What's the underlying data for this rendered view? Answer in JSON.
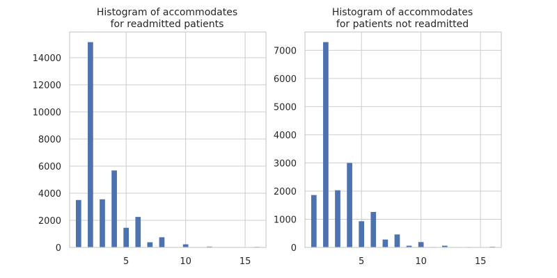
{
  "colors": {
    "bar": "#4c72b0",
    "grid": "#cccccc",
    "frame": "#cccccc",
    "text": "#262626",
    "background": "#ffffff"
  },
  "chart_data": [
    {
      "type": "bar",
      "title": [
        "Histogram of accommodates",
        "for readmitted patients"
      ],
      "xlabel": "",
      "ylabel": "",
      "xlim": [
        0.25,
        16.75
      ],
      "ylim": [
        0,
        15900
      ],
      "xticks": [
        5,
        10,
        15
      ],
      "yticks": [
        0,
        2000,
        4000,
        6000,
        8000,
        10000,
        12000,
        14000
      ],
      "grid": true,
      "bar_width": 0.45,
      "x": [
        1,
        2,
        3,
        4,
        5,
        6,
        7,
        8,
        9,
        10,
        11,
        12,
        13,
        14,
        15,
        16
      ],
      "values": [
        3500,
        15150,
        3550,
        5680,
        1450,
        2250,
        380,
        750,
        20,
        230,
        20,
        60,
        15,
        20,
        15,
        40
      ]
    },
    {
      "type": "bar",
      "title": [
        "Histogram of accommodates",
        "for patients not readmitted"
      ],
      "xlabel": "",
      "ylabel": "",
      "xlim": [
        0.25,
        16.75
      ],
      "ylim": [
        0,
        7650
      ],
      "xticks": [
        5,
        10,
        15
      ],
      "yticks": [
        0,
        1000,
        2000,
        3000,
        4000,
        5000,
        6000,
        7000
      ],
      "grid": true,
      "bar_width": 0.45,
      "x": [
        1,
        2,
        3,
        4,
        5,
        6,
        7,
        8,
        9,
        10,
        11,
        12,
        13,
        14,
        15,
        16
      ],
      "values": [
        1860,
        7290,
        2030,
        3000,
        930,
        1260,
        280,
        460,
        60,
        190,
        15,
        60,
        10,
        15,
        10,
        25
      ]
    }
  ]
}
